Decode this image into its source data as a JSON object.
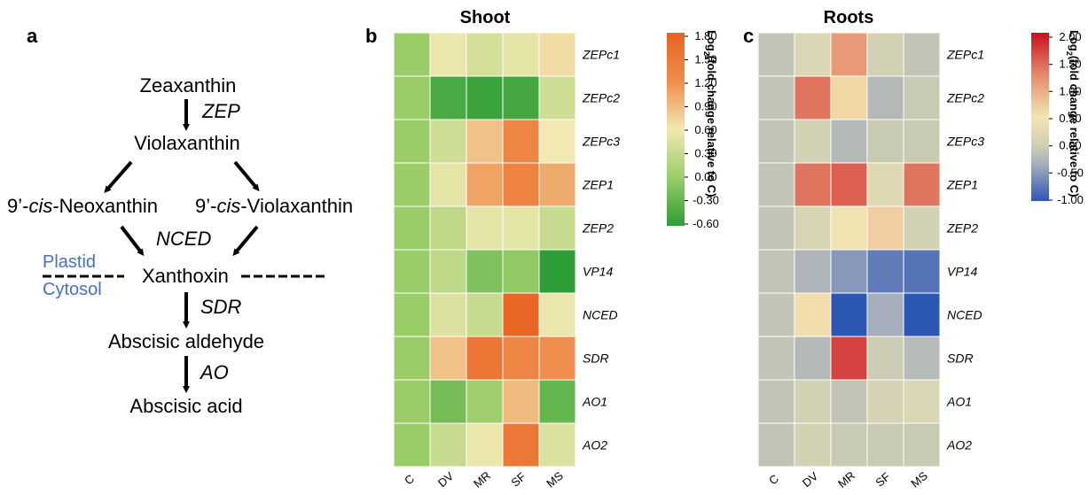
{
  "panel_a": {
    "letter": "a",
    "zeaxanthin": "Zeaxanthin",
    "zep": "ZEP",
    "violaxanthin": "Violaxanthin",
    "neoxanthin_prefix": "9’-",
    "neoxanthin_cis": "cis",
    "neoxanthin_suffix": "-Neoxanthin",
    "cisviola_prefix": "9’-",
    "cisviola_cis": "cis",
    "cisviola_suffix": "-Violaxanthin",
    "nced": "NCED",
    "plastid": "Plastid",
    "xanthoxin": "Xanthoxin",
    "cytosol": "Cytosol",
    "sdr": "SDR",
    "abscisic_aldehyde": "Abscisic aldehyde",
    "ao": "AO",
    "abscisic_acid": "Abscisic acid"
  },
  "panel_b": {
    "letter": "b",
    "title": "Shoot"
  },
  "panel_c": {
    "letter": "c",
    "title": "Roots"
  },
  "chart_data": [
    {
      "type": "heatmap",
      "title": "Shoot",
      "rows": [
        "ZEPc1",
        "ZEPc2",
        "ZEPc3",
        "ZEP1",
        "ZEP2",
        "VP14",
        "NCED",
        "SDR",
        "AO1",
        "AO2"
      ],
      "columns": [
        "C",
        "DV",
        "MR",
        "SF",
        "MS"
      ],
      "values": [
        [
          0,
          0.55,
          0.4,
          0.5,
          0.68
        ],
        [
          0,
          -0.45,
          -0.52,
          -0.48,
          0.35
        ],
        [
          0,
          0.35,
          0.85,
          1.3,
          0.6
        ],
        [
          0,
          0.5,
          1.05,
          1.35,
          1.0
        ],
        [
          0,
          0.25,
          0.5,
          0.5,
          0.3
        ],
        [
          0,
          0.25,
          -0.15,
          -0.05,
          -0.6
        ],
        [
          0,
          0.45,
          0.3,
          1.75,
          0.55
        ],
        [
          0,
          0.85,
          1.55,
          1.3,
          1.2
        ],
        [
          0,
          -0.2,
          0.05,
          0.9,
          -0.3
        ],
        [
          0,
          0.3,
          0.55,
          1.5,
          0.45
        ]
      ],
      "colorbar": {
        "label_main": "Log",
        "label_sub": "2",
        "label_rest": "(fold change relative to C)",
        "ticks": [
          "1.80",
          "1.50",
          "1.20",
          "0.90",
          "0.60",
          "0.30",
          "0.00",
          "-0.30",
          "-0.60"
        ],
        "range": [
          -0.6,
          1.8
        ],
        "colors": [
          "#2e9e36",
          "#9acd68",
          "#f2e8b2",
          "#ee8d4c",
          "#e86321"
        ]
      }
    },
    {
      "type": "heatmap",
      "title": "Roots",
      "rows": [
        "ZEPc1",
        "ZEPc2",
        "ZEPc3",
        "ZEP1",
        "ZEP2",
        "VP14",
        "NCED",
        "SDR",
        "AO1",
        "AO2"
      ],
      "columns": [
        "C",
        "DV",
        "MR",
        "SF",
        "MS"
      ],
      "values": [
        [
          0,
          0.4,
          1.3,
          0.25,
          0
        ],
        [
          0,
          1.5,
          0.9,
          -0.2,
          0.1
        ],
        [
          0,
          0.25,
          -0.2,
          0.1,
          0.1
        ],
        [
          0,
          1.5,
          1.6,
          0.45,
          1.5
        ],
        [
          0,
          0.35,
          0.75,
          0.95,
          0.25
        ],
        [
          0,
          -0.3,
          -0.55,
          -0.75,
          -0.8
        ],
        [
          0,
          0.85,
          -1.0,
          -0.4,
          -1.0
        ],
        [
          0,
          -0.2,
          1.75,
          0.15,
          -0.15
        ],
        [
          0,
          0.25,
          0,
          0.3,
          0.4
        ],
        [
          0,
          0.25,
          0.1,
          0.1,
          0.1
        ]
      ],
      "colorbar": {
        "label_main": "Log",
        "label_sub": "2",
        "label_rest": "(fold change relative to C)",
        "ticks": [
          "2.00",
          "1.50",
          "1.00",
          "0.50",
          "0.00",
          "-0.50",
          "-1.00"
        ],
        "range": [
          -1.0,
          2.0
        ],
        "colors": [
          "#2d57b5",
          "#a6aebb",
          "#cfcfb3",
          "#f3e5b2",
          "#e58a6c",
          "#c90f1e"
        ]
      }
    }
  ]
}
